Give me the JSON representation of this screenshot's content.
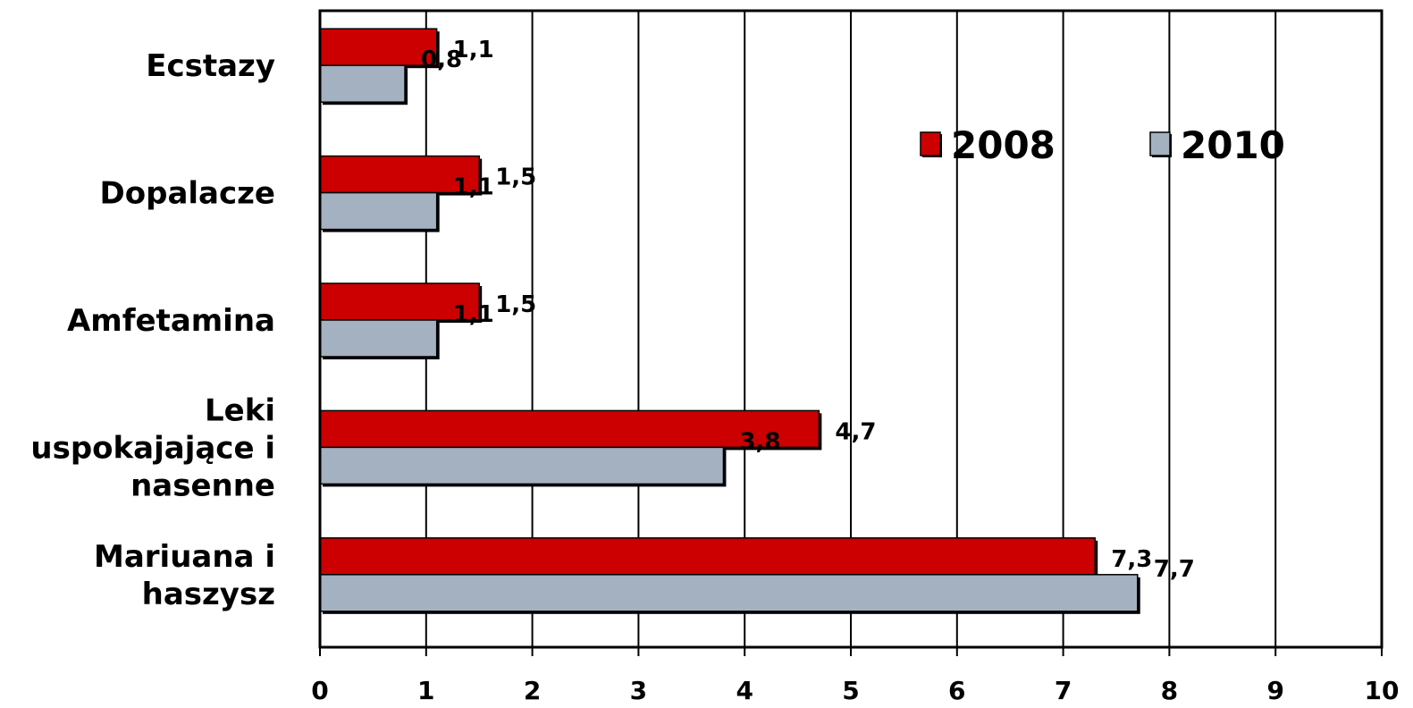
{
  "chart_data": {
    "type": "bar",
    "orientation": "horizontal",
    "categories": [
      [
        "Ecstazy"
      ],
      [
        "Dopalacze"
      ],
      [
        "Amfetamina"
      ],
      [
        "Leki",
        "uspokajające i",
        "nasenne"
      ],
      [
        "Mariuana i",
        "haszysz"
      ]
    ],
    "series": [
      {
        "name": "2008",
        "color": "#cc0000",
        "values": [
          1.1,
          1.5,
          1.5,
          4.7,
          7.3
        ],
        "labels": [
          "1,1",
          "1,5",
          "1,5",
          "4,7",
          "7,3"
        ]
      },
      {
        "name": "2010",
        "color": "#a3b1c0",
        "values": [
          0.8,
          1.1,
          1.1,
          3.8,
          7.7
        ],
        "labels": [
          "0,8",
          "1,1",
          "1,1",
          "3,8",
          "7,7"
        ]
      }
    ],
    "xlim": [
      0,
      10
    ],
    "xticks": [
      "0",
      "1",
      "2",
      "3",
      "4",
      "5",
      "6",
      "7",
      "8",
      "9",
      "10"
    ],
    "grid": "vertical",
    "legend_position": "top-right"
  }
}
